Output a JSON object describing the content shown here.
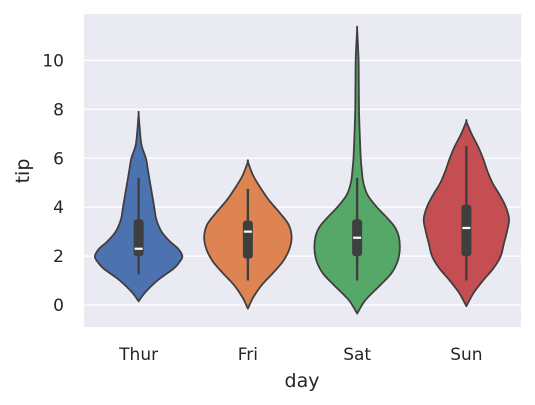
{
  "chart_data": {
    "type": "violin",
    "title": "",
    "xlabel": "day",
    "ylabel": "tip",
    "ylim": [
      -0.9,
      11.9
    ],
    "yticks": [
      0,
      2,
      4,
      6,
      8,
      10
    ],
    "grid": true,
    "legend": "none",
    "categories": [
      "Thur",
      "Fri",
      "Sat",
      "Sun"
    ],
    "series": [
      {
        "category": "Thur",
        "color": "#4c72b0",
        "kde_min": 0.15,
        "kde_max": 7.8,
        "profile": [
          [
            0.15,
            0.0
          ],
          [
            0.5,
            0.06
          ],
          [
            1.0,
            0.18
          ],
          [
            1.5,
            0.34
          ],
          [
            1.8,
            0.4
          ],
          [
            2.0,
            0.42
          ],
          [
            2.3,
            0.38
          ],
          [
            2.6,
            0.3
          ],
          [
            3.0,
            0.22
          ],
          [
            3.5,
            0.17
          ],
          [
            4.0,
            0.15
          ],
          [
            4.5,
            0.13
          ],
          [
            5.0,
            0.11
          ],
          [
            5.5,
            0.09
          ],
          [
            6.0,
            0.07
          ],
          [
            6.5,
            0.03
          ],
          [
            7.0,
            0.015
          ],
          [
            7.8,
            0.0
          ]
        ],
        "whisker_low": 1.25,
        "q1": 2.0,
        "median": 2.3,
        "q3": 3.5,
        "whisker_high": 5.2
      },
      {
        "category": "Fri",
        "color": "#dd8452",
        "kde_min": -0.15,
        "kde_max": 5.85,
        "profile": [
          [
            -0.15,
            0.0
          ],
          [
            0.3,
            0.05
          ],
          [
            0.8,
            0.13
          ],
          [
            1.3,
            0.24
          ],
          [
            1.8,
            0.34
          ],
          [
            2.3,
            0.4
          ],
          [
            2.8,
            0.42
          ],
          [
            3.3,
            0.39
          ],
          [
            3.8,
            0.3
          ],
          [
            4.3,
            0.2
          ],
          [
            4.8,
            0.12
          ],
          [
            5.3,
            0.05
          ],
          [
            5.85,
            0.0
          ]
        ],
        "whisker_low": 1.0,
        "q1": 1.9,
        "median": 3.0,
        "q3": 3.45,
        "whisker_high": 4.75
      },
      {
        "category": "Sat",
        "color": "#55a868",
        "kde_min": -0.35,
        "kde_max": 11.3,
        "profile": [
          [
            -0.35,
            0.0
          ],
          [
            0.2,
            0.08
          ],
          [
            0.8,
            0.22
          ],
          [
            1.3,
            0.33
          ],
          [
            1.8,
            0.39
          ],
          [
            2.3,
            0.41
          ],
          [
            2.8,
            0.4
          ],
          [
            3.2,
            0.36
          ],
          [
            3.6,
            0.28
          ],
          [
            4.0,
            0.19
          ],
          [
            4.5,
            0.1
          ],
          [
            5.0,
            0.06
          ],
          [
            5.5,
            0.045
          ],
          [
            6.0,
            0.035
          ],
          [
            7.0,
            0.025
          ],
          [
            8.0,
            0.018
          ],
          [
            9.0,
            0.016
          ],
          [
            10.0,
            0.014
          ],
          [
            10.6,
            0.008
          ],
          [
            11.3,
            0.0
          ]
        ],
        "whisker_low": 1.0,
        "q1": 2.0,
        "median": 2.75,
        "q3": 3.5,
        "whisker_high": 5.2
      },
      {
        "category": "Sun",
        "color": "#c44e52",
        "kde_min": -0.05,
        "kde_max": 7.5,
        "profile": [
          [
            -0.05,
            0.0
          ],
          [
            0.5,
            0.07
          ],
          [
            1.0,
            0.16
          ],
          [
            1.5,
            0.26
          ],
          [
            2.0,
            0.33
          ],
          [
            2.5,
            0.36
          ],
          [
            3.0,
            0.39
          ],
          [
            3.5,
            0.41
          ],
          [
            4.0,
            0.38
          ],
          [
            4.5,
            0.32
          ],
          [
            5.0,
            0.25
          ],
          [
            5.5,
            0.2
          ],
          [
            6.0,
            0.16
          ],
          [
            6.5,
            0.11
          ],
          [
            7.0,
            0.05
          ],
          [
            7.5,
            0.0
          ]
        ],
        "whisker_low": 1.0,
        "q1": 2.0,
        "median": 3.15,
        "q3": 4.1,
        "whisker_high": 6.5
      }
    ]
  }
}
